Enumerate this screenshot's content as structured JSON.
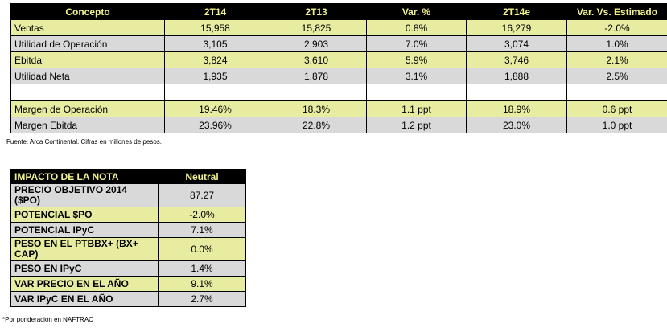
{
  "main_table": {
    "headers": [
      "Concepto",
      "2T14",
      "2T13",
      "Var. %",
      "2T14e",
      "Var. Vs. Estimado"
    ],
    "rows": [
      [
        "Ventas",
        "15,958",
        "15,825",
        "0.8%",
        "16,279",
        "-2.0%"
      ],
      [
        "Utilidad de Operación",
        "3,105",
        "2,903",
        "7.0%",
        "3,074",
        "1.0%"
      ],
      [
        "Ebitda",
        "3,824",
        "3,610",
        "5.9%",
        "3,746",
        "2.1%"
      ],
      [
        "Utilidad Neta",
        "1,935",
        "1,878",
        "3.1%",
        "1,888",
        "2.5%"
      ],
      [
        "",
        "",
        "",
        "",
        "",
        ""
      ],
      [
        "Margen de Operación",
        "19.46%",
        "18.3%",
        "1.1 ppt",
        "18.9%",
        "0.6 ppt"
      ],
      [
        "Margen Ebitda",
        "23.96%",
        "22.8%",
        "1.2 ppt",
        "23.0%",
        "1.0 ppt"
      ]
    ],
    "source_note": "Fuente: Arca Continental. Cifras en millones de pesos."
  },
  "impact_table": {
    "header_label": "IMPACTO DE LA NOTA",
    "header_value": "Neutral",
    "rows": [
      [
        "PRECIO OBJETIVO 2014 ($PO)",
        "87.27"
      ],
      [
        "POTENCIAL $PO",
        "-2.0%"
      ],
      [
        "POTENCIAL IPyC",
        "7.1%"
      ],
      [
        "PESO EN EL PTBBX+ (BX+ CAP)",
        "0.0%"
      ],
      [
        "PESO EN IPyC",
        "1.4%"
      ],
      [
        "VAR PRECIO EN EL AÑO",
        "9.1%"
      ],
      [
        "VAR IPyC EN EL AÑO",
        "2.7%"
      ]
    ],
    "footnote": "*Por ponderación en NAFTRAC"
  },
  "colors": {
    "header_bg": "#000000",
    "header_text": "#f0f08c",
    "row_yellow": "#e8eca0",
    "row_gray": "#d9d9d9"
  }
}
